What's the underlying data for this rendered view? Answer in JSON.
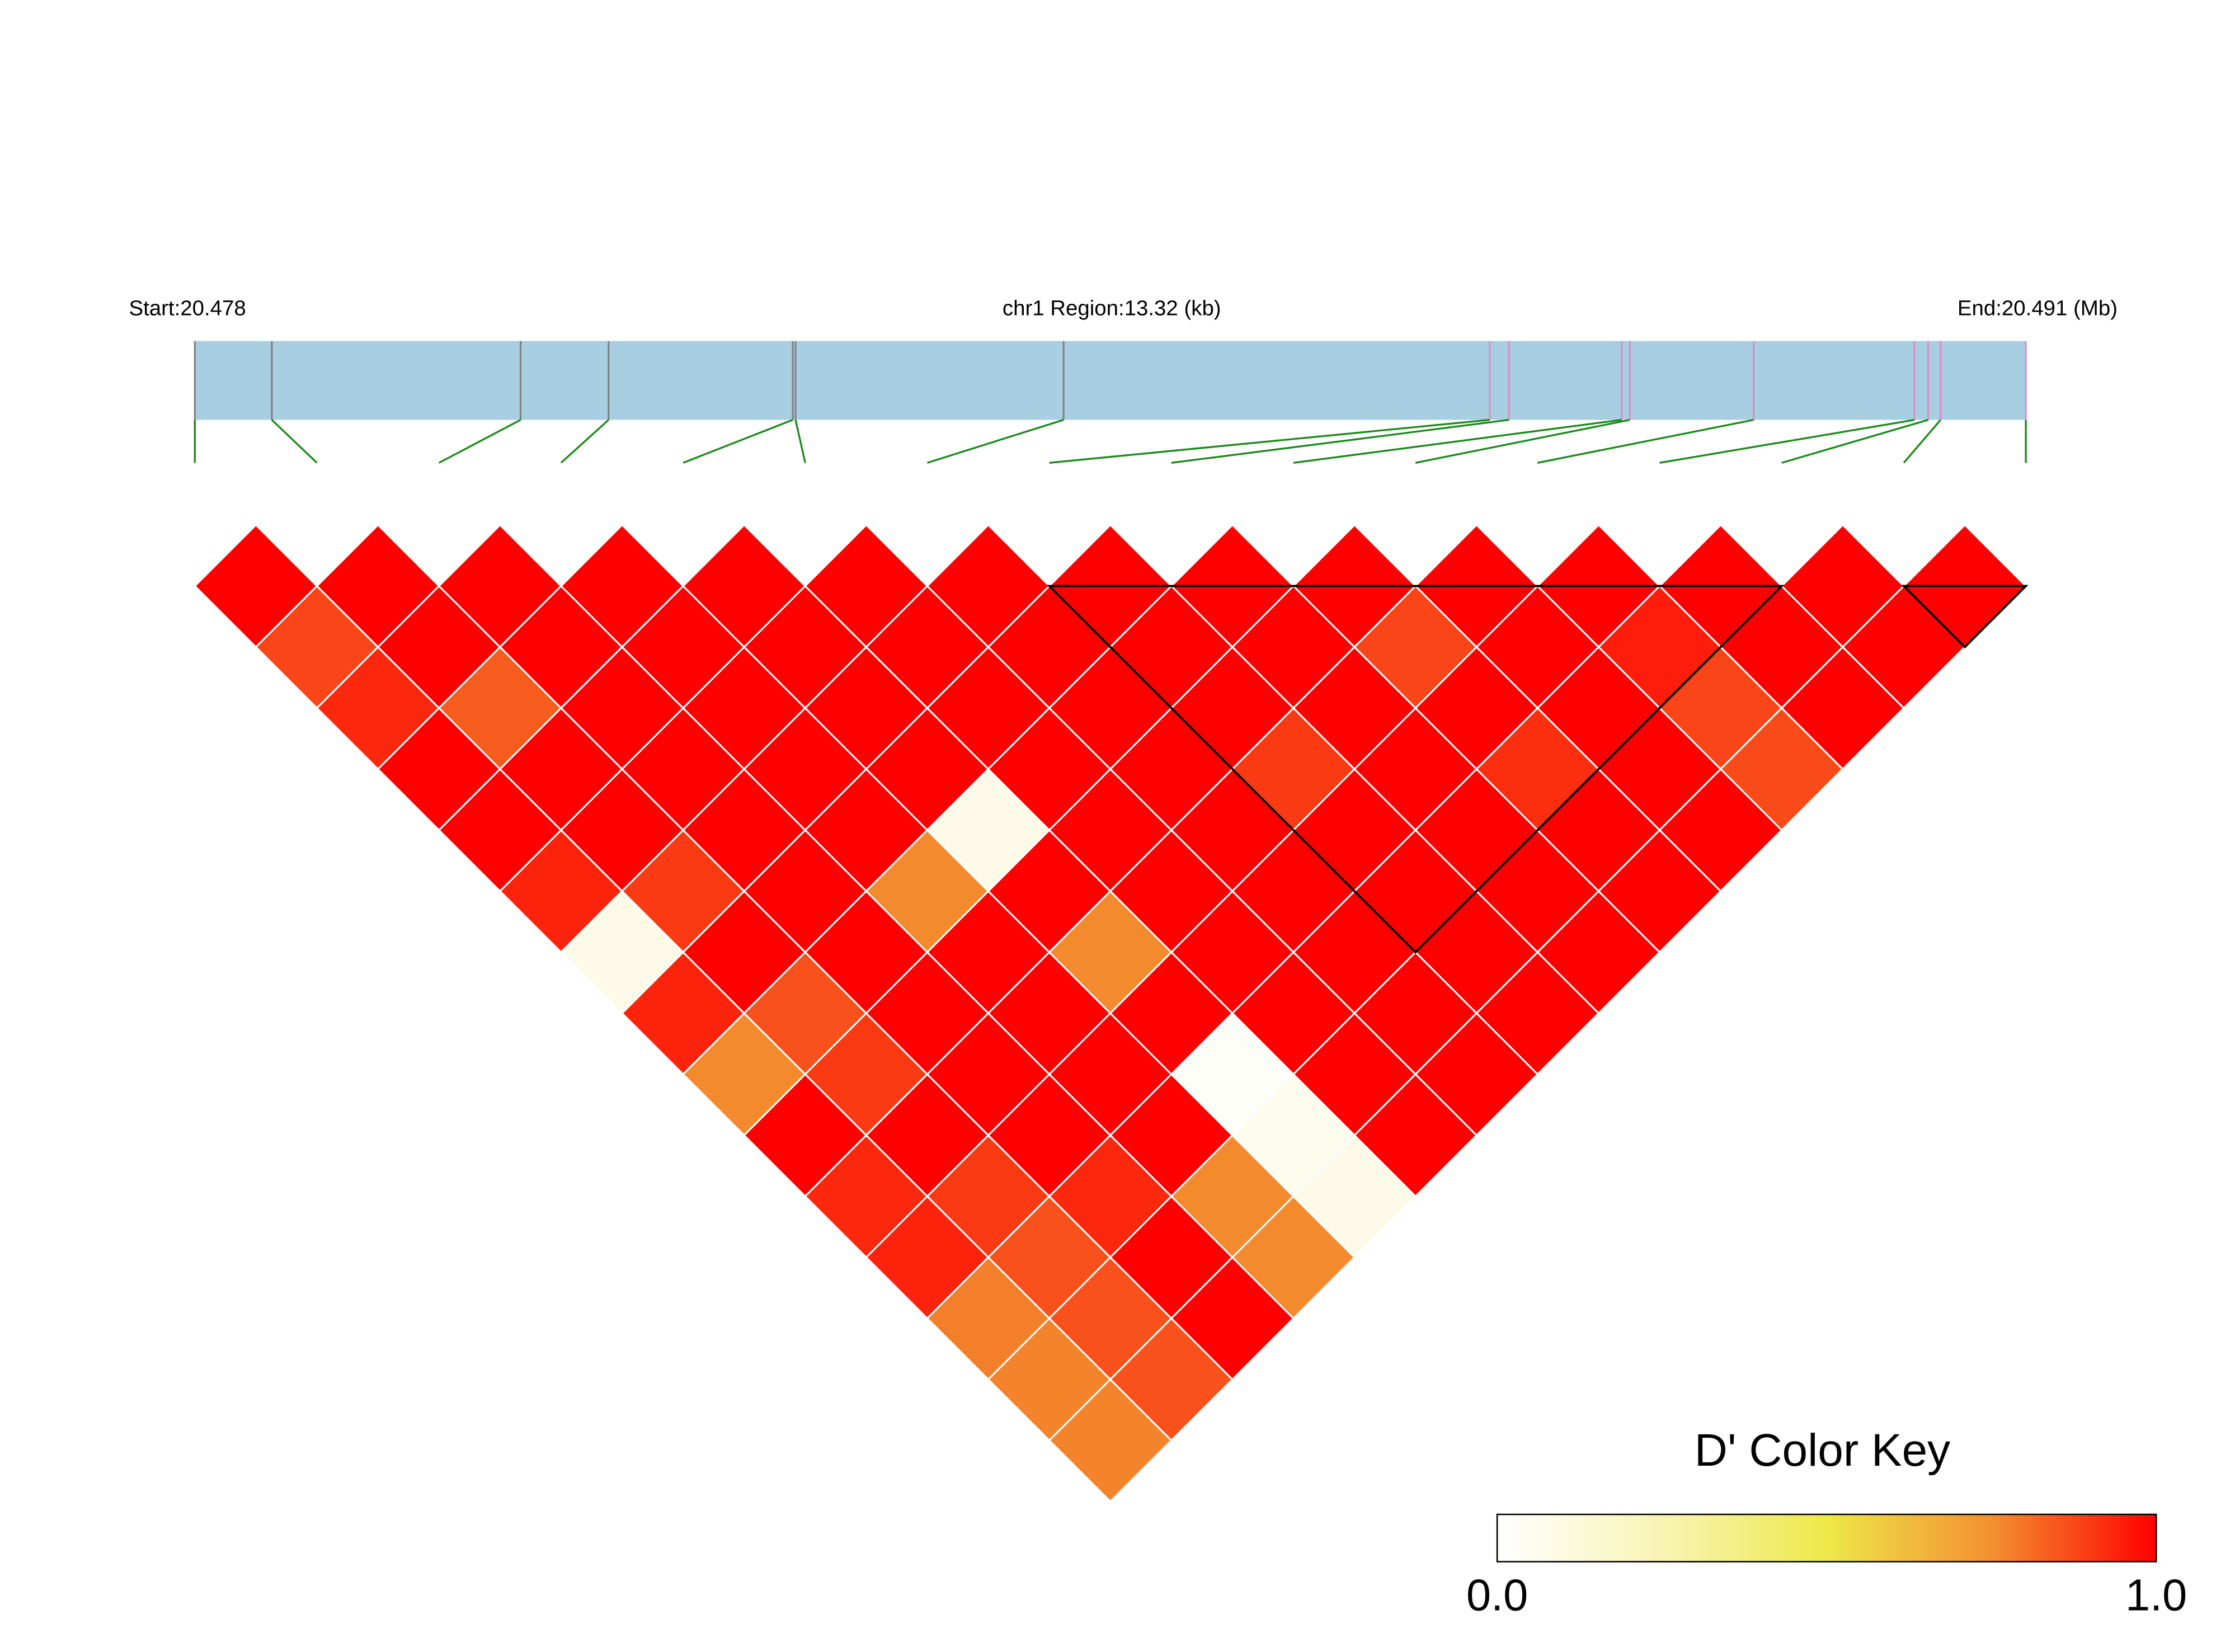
{
  "chart_data": {
    "type": "ld_heatmap",
    "start_label": "Start:20.478",
    "region_label": "chr1 Region:13.32 (kb)",
    "end_label": "End:20.491 (Mb)",
    "positions": [
      20.478,
      20.47856,
      20.48037,
      20.48101,
      20.48235,
      20.48237,
      20.48432,
      20.48742,
      20.48756,
      20.48838,
      20.48844,
      20.48934,
      20.49051,
      20.49061,
      20.4907,
      20.49132
    ],
    "position_colors": [
      "#808080",
      "#808080",
      "#808080",
      "#808080",
      "#808080",
      "#808080",
      "#808080",
      "#e08ac8",
      "#e08ac8",
      "#e08ac8",
      "#e08ac8",
      "#e08ac8",
      "#e08ac8",
      "#e08ac8",
      "#e08ac8",
      "#e08ac8"
    ],
    "bar_color": "#a8cee2",
    "connector_color": "#1a8a1a",
    "dprime": [
      [
        1,
        0.88,
        0.93,
        1,
        1,
        0.94,
        0.08,
        0.94,
        0.76,
        1,
        0.93,
        0.94,
        0.78,
        0.77,
        0.77
      ],
      [
        1,
        1,
        0.84,
        1,
        1,
        0.9,
        1,
        0.86,
        0.9,
        1,
        0.9,
        0.86,
        0.86,
        0.86
      ],
      [
        1,
        1,
        1,
        1,
        1,
        1,
        1,
        1,
        1,
        1,
        0.93,
        1,
        1
      ],
      [
        1,
        1,
        1,
        1,
        1,
        0.76,
        1,
        1,
        1,
        1,
        0.76,
        0.76
      ],
      [
        1,
        1,
        1,
        1,
        0.08,
        1,
        0.76,
        1,
        0.02,
        0.06,
        0.08
      ],
      [
        1,
        1,
        1,
        1,
        1,
        1,
        1,
        1,
        1,
        1
      ],
      [
        1,
        1,
        1,
        1,
        1,
        1,
        1,
        1,
        1
      ],
      [
        1,
        1,
        1,
        0.9,
        1,
        1,
        1,
        1
      ],
      [
        1,
        1,
        1,
        1,
        1,
        1,
        1
      ],
      [
        1,
        0.88,
        1,
        0.92,
        1,
        1
      ],
      [
        1,
        1,
        1,
        1,
        1
      ],
      [
        1,
        0.95,
        0.88,
        0.87
      ],
      [
        1,
        1,
        1
      ],
      [
        1,
        1
      ],
      [
        1
      ]
    ],
    "blocks": [
      [
        7,
        13
      ],
      [
        14,
        15
      ]
    ],
    "colorscale": [
      "#ffffff",
      "#f8f4b4",
      "#eee84a",
      "#f39030",
      "#ff0000"
    ],
    "key_title": "D' Color Key",
    "key_lim": [
      0,
      1
    ],
    "key_ticks": [
      {
        "value": 0,
        "label": "0.0"
      },
      {
        "value": 1,
        "label": "1.0"
      }
    ]
  }
}
